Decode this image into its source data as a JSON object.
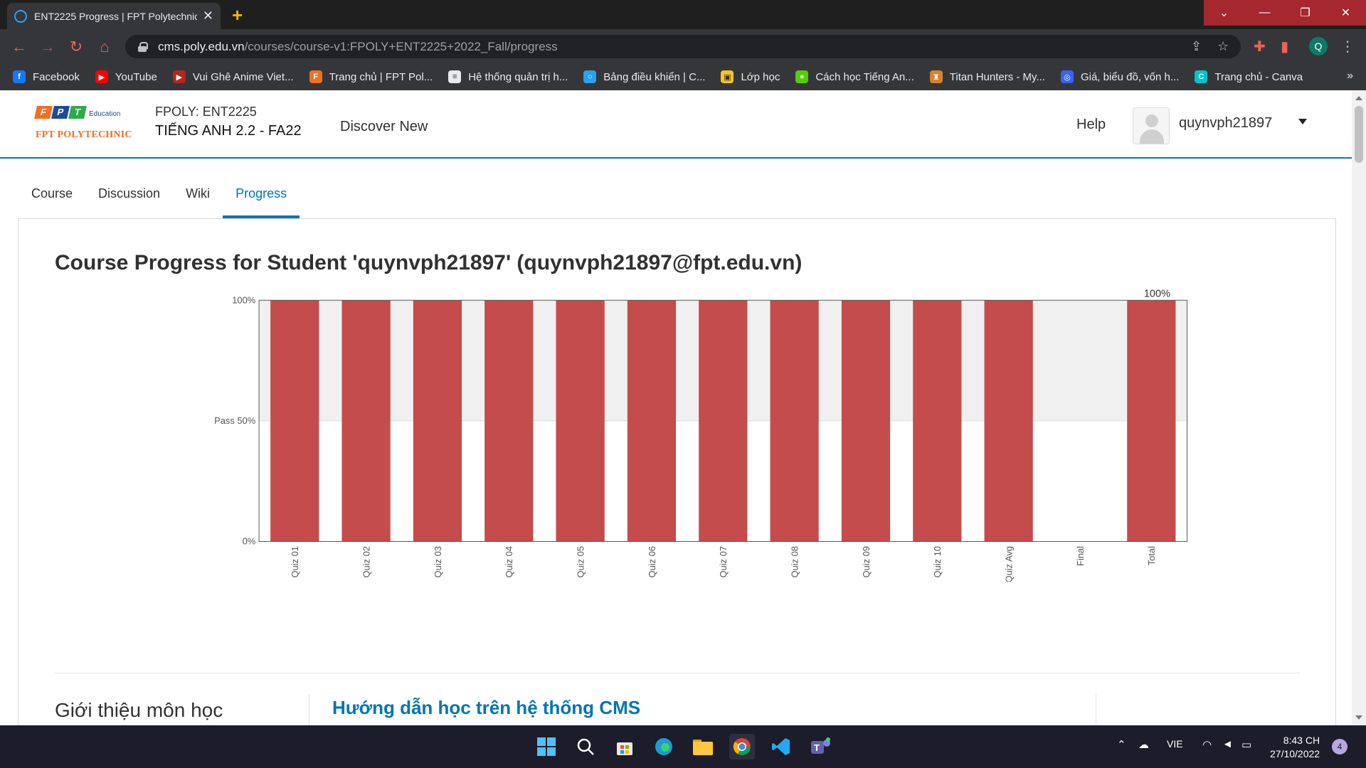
{
  "browser": {
    "tab_title": "ENT2225 Progress | FPT Polytechnic",
    "tab_close": "✕",
    "new_tab": "+",
    "url_host": "cms.poly.edu.vn",
    "url_path": "/courses/course-v1:FPOLY+ENT2225+2022_Fall/progress",
    "profile_initial": "Q",
    "bookmarks": [
      {
        "label": "Facebook",
        "icon": "facebook-icon",
        "color": "#1877f2",
        "glyph": "f"
      },
      {
        "label": "YouTube",
        "icon": "youtube-icon",
        "color": "#ff0000",
        "glyph": "▶"
      },
      {
        "label": "Vui Ghê Anime Viet...",
        "icon": "anime-site-icon",
        "color": "#b3261e",
        "glyph": "▶"
      },
      {
        "label": "Trang chủ | FPT Pol...",
        "icon": "fpt-icon",
        "color": "#f26f21",
        "glyph": "F"
      },
      {
        "label": "Hệ thống quản trị h...",
        "icon": "lms-icon",
        "color": "#e8eaed",
        "glyph": "≡"
      },
      {
        "label": "Bảng điều khiển | C...",
        "icon": "dashboard-icon",
        "color": "#2aa0f0",
        "glyph": "○"
      },
      {
        "label": "Lớp học",
        "icon": "classroom-icon",
        "color": "#f7c51e",
        "glyph": "▣"
      },
      {
        "label": "Cách học Tiếng An...",
        "icon": "duolingo-icon",
        "color": "#58cc02",
        "glyph": "●"
      },
      {
        "label": "Titan Hunters - My...",
        "icon": "game-icon",
        "color": "#d9822b",
        "glyph": "♜"
      },
      {
        "label": "Giá, biểu đồ, vốn h...",
        "icon": "coin-icon",
        "color": "#3861fb",
        "glyph": "◎"
      },
      {
        "label": "Trang chủ - Canva",
        "icon": "canva-icon",
        "color": "#00c4cc",
        "glyph": "C"
      }
    ],
    "bookmarks_more": "»"
  },
  "header": {
    "logo_letters": [
      "F",
      "P",
      "T"
    ],
    "logo_colors": [
      "#f26f21",
      "#1e4c9a",
      "#2eaa4a"
    ],
    "logo_edu": "Education",
    "logo_text": "FPT POLYTECHNIC",
    "course_org": "FPOLY: ENT2225",
    "course_name": "TIẾNG ANH 2.2 - FA22",
    "discover": "Discover New",
    "help": "Help",
    "username": "quynvph21897"
  },
  "tabs": [
    {
      "label": "Course",
      "active": false
    },
    {
      "label": "Discussion",
      "active": false
    },
    {
      "label": "Wiki",
      "active": false
    },
    {
      "label": "Progress",
      "active": true
    }
  ],
  "progress": {
    "title": "Course Progress for Student 'quynvph21897' (quynvph21897@fpt.edu.vn)"
  },
  "chart_data": {
    "type": "bar",
    "categories": [
      "Quiz 01",
      "Quiz 02",
      "Quiz 03",
      "Quiz 04",
      "Quiz 05",
      "Quiz 06",
      "Quiz 07",
      "Quiz 08",
      "Quiz 09",
      "Quiz 10",
      "Quiz Avg",
      "Final",
      "Total"
    ],
    "values": [
      100,
      100,
      100,
      100,
      100,
      100,
      100,
      100,
      100,
      100,
      100,
      0,
      100
    ],
    "ylim": [
      0,
      100
    ],
    "yticks": [
      {
        "value": 100,
        "label": "100%"
      },
      {
        "value": 50,
        "label": "Pass 50%"
      },
      {
        "value": 0,
        "label": "0%"
      }
    ],
    "total_label": "100%",
    "bar_color": "#c44c4c",
    "pass_band_color": "#f0f0f0"
  },
  "sections": {
    "intro_title": "Giới thiệu môn học",
    "cms_link": "Hướng dẫn học trên hệ thống CMS"
  },
  "taskbar": {
    "lang": "VIE",
    "time": "8:43 CH",
    "date": "27/10/2022",
    "notifications": "4"
  }
}
